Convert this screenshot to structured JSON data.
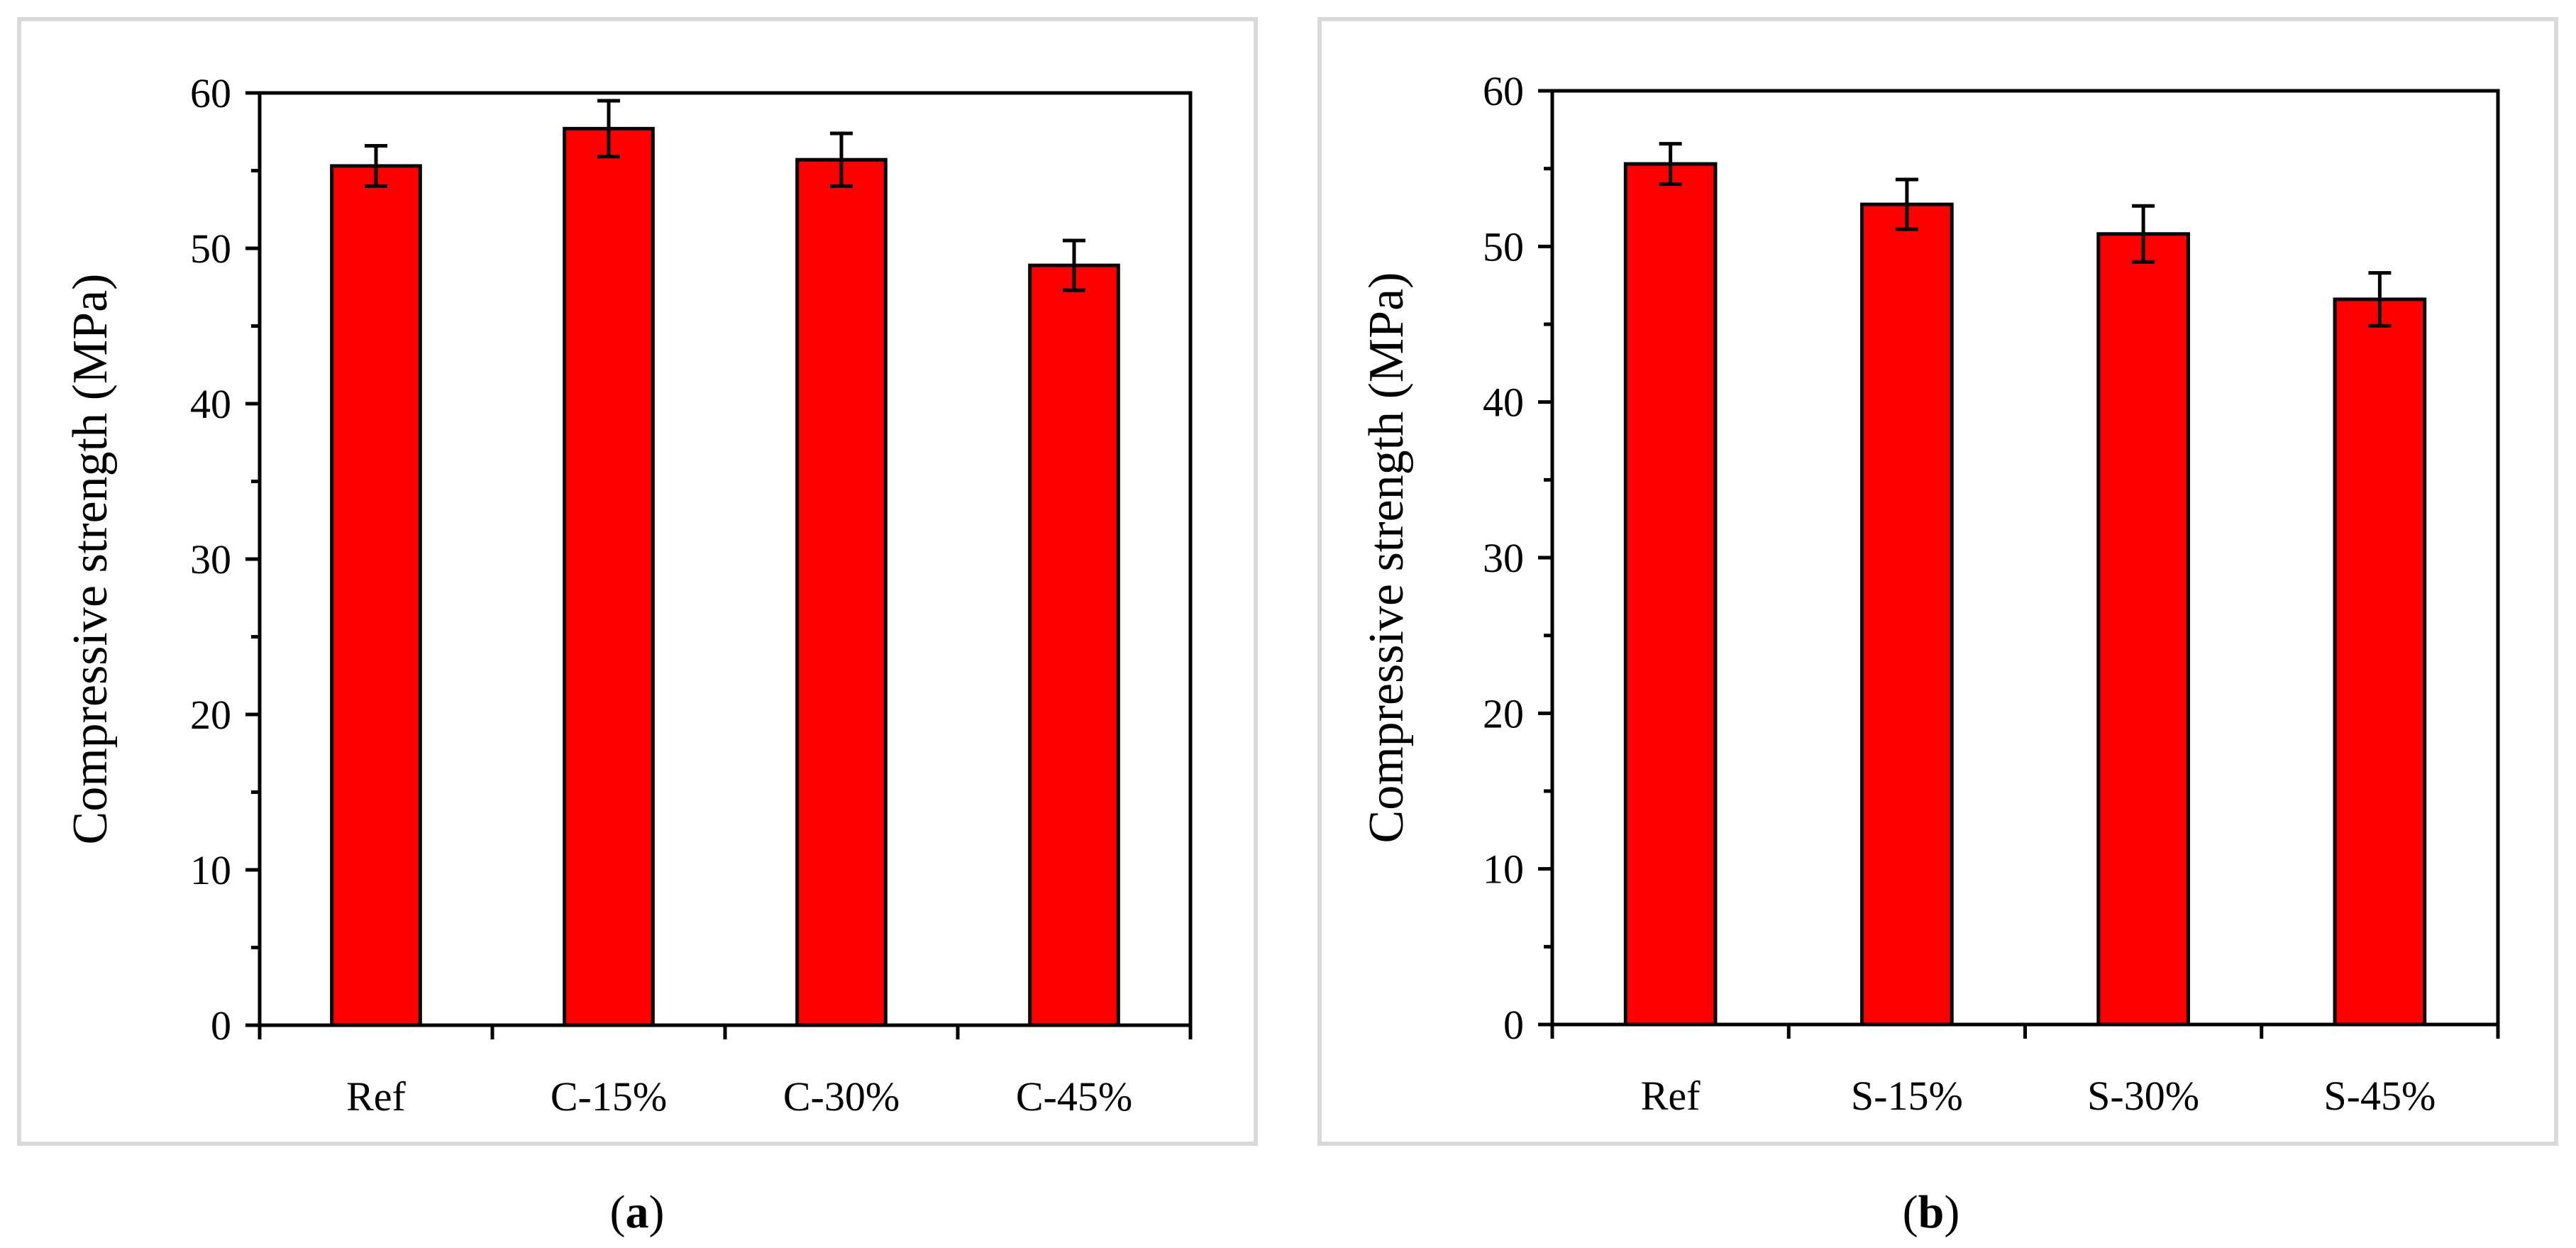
{
  "colors": {
    "bar": "#ff0000",
    "frame": "#d9d9d9"
  },
  "chart_data": [
    {
      "type": "bar",
      "caption": {
        "open": "(",
        "letter": "a",
        "close": ")"
      },
      "categories": [
        "Ref",
        "C-15%",
        "C-30%",
        "C-45%"
      ],
      "values": [
        55.3,
        57.7,
        55.7,
        48.9
      ],
      "errors": [
        1.3,
        1.8,
        1.7,
        1.6
      ],
      "ylabel": "Compressive strength (MPa)",
      "xlabel": "",
      "ylim": [
        0,
        60
      ],
      "yticks": [
        0,
        10,
        20,
        30,
        40,
        50,
        60
      ],
      "legend": "none",
      "grid": false
    },
    {
      "type": "bar",
      "caption": {
        "open": "(",
        "letter": "b",
        "close": ")"
      },
      "categories": [
        "Ref",
        "S-15%",
        "S-30%",
        "S-45%"
      ],
      "values": [
        55.3,
        52.7,
        50.8,
        46.6
      ],
      "errors": [
        1.3,
        1.6,
        1.8,
        1.7
      ],
      "ylabel": "Compressive strength (MPa)",
      "xlabel": "",
      "ylim": [
        0,
        60
      ],
      "yticks": [
        0,
        10,
        20,
        30,
        40,
        50,
        60
      ],
      "legend": "none",
      "grid": false
    }
  ]
}
